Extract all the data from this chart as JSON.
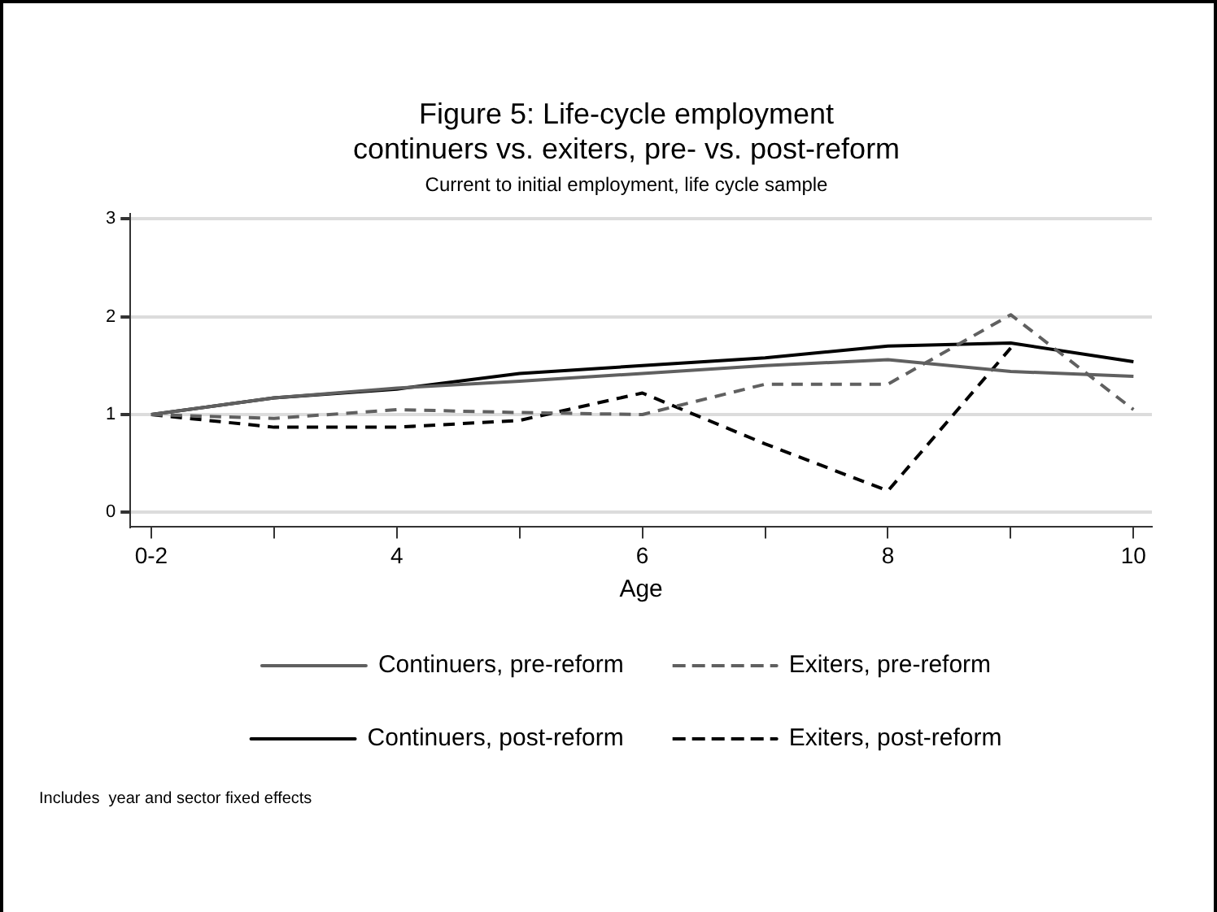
{
  "chart_data": {
    "type": "line",
    "title": "Figure 5: Life-cycle employment\ncontinuers vs. exiters, pre- vs. post-reform",
    "subtitle": "Current to initial employment, life cycle sample",
    "xlabel": "Age",
    "x": [
      2,
      3,
      4,
      5,
      6,
      7,
      8,
      9,
      10
    ],
    "xlim": [
      1.83,
      10.15
    ],
    "xticks": [
      {
        "value": 2,
        "label": "0-2"
      },
      {
        "value": 3,
        "label": null
      },
      4,
      {
        "value": 5,
        "label": null
      },
      6,
      {
        "value": 7,
        "label": null
      },
      8,
      {
        "value": 9,
        "label": null
      },
      10
    ],
    "ylim": [
      -0.15,
      3.05
    ],
    "yticks": [
      0,
      1,
      2,
      3
    ],
    "grid": "y",
    "legend": "bottom",
    "marker": "none",
    "series": [
      {
        "name": "Continuers, pre-reform",
        "color": "#606060",
        "line_style": "solid",
        "values": [
          1,
          1.17,
          1.27,
          1.34,
          1.42,
          1.5,
          1.56,
          1.44,
          1.39
        ]
      },
      {
        "name": "Exiters, pre-reform",
        "color": "#606060",
        "line_style": "dashed",
        "values": [
          1,
          0.96,
          1.05,
          1.02,
          1.0,
          1.31,
          1.31,
          2.02,
          1.05
        ]
      },
      {
        "name": "Continuers, post-reform",
        "color": "#000000",
        "line_style": "solid",
        "values": [
          1,
          1.17,
          1.26,
          1.42,
          1.5,
          1.58,
          1.7,
          1.73,
          1.54
        ]
      },
      {
        "name": "Exiters, post-reform",
        "color": "#000000",
        "line_style": "dashed",
        "values": [
          1,
          0.87,
          0.87,
          0.94,
          1.22,
          0.7,
          0.22,
          1.68,
          null
        ]
      }
    ],
    "annotations": [
      "Includes  year and sector fixed effects"
    ]
  }
}
